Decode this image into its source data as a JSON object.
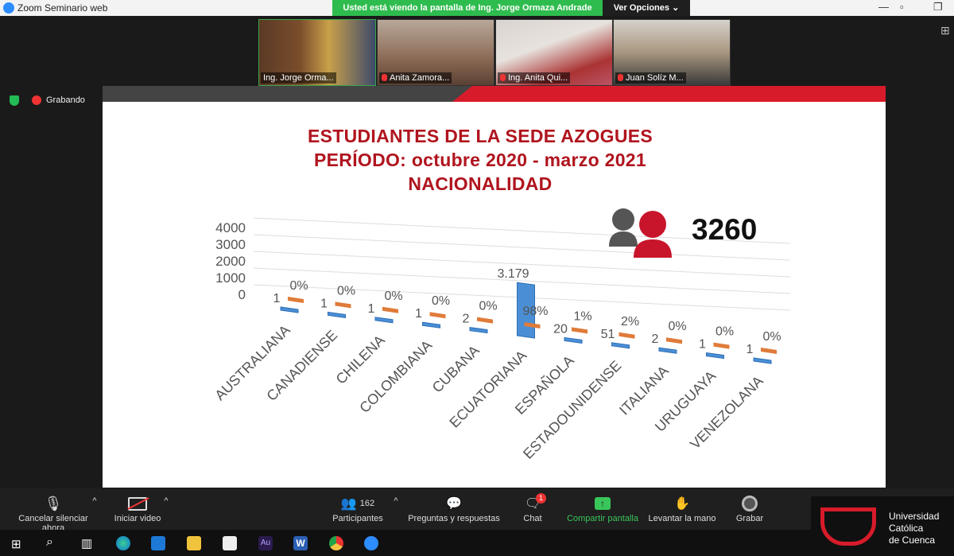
{
  "window": {
    "title": "Zoom Seminario web"
  },
  "share_banner": {
    "text": "Usted está viendo la pantalla de Ing. Jorge Ormaza Andrade",
    "view_options": "Ver Opciones"
  },
  "participants_thumbs": [
    {
      "name": "Ing. Jorge Orma...",
      "muted": false
    },
    {
      "name": "Anita Zamora...",
      "muted": true
    },
    {
      "name": "Ing. Anita Qui...",
      "muted": true
    },
    {
      "name": "Juan Solíz M...",
      "muted": true
    }
  ],
  "recording": {
    "label": "Grabando"
  },
  "slide": {
    "title_lines": [
      "ESTUDIANTES DE LA SEDE AZOGUES",
      "PERÍODO: octubre 2020 - marzo 2021",
      "NACIONALIDAD"
    ],
    "total": "3260",
    "chart_data": {
      "type": "bar",
      "categories": [
        "AUSTRALIANA",
        "CANADIENSE",
        "CHILENA",
        "COLOMBIANA",
        "CUBANA",
        "ECUATORIANA",
        "ESPAÑOLA",
        "ESTADOUNIDENSE",
        "ITALIANA",
        "URUGUAYA",
        "VENEZOLANA"
      ],
      "series": [
        {
          "values": [
            1,
            1,
            1,
            1,
            2,
            3179,
            20,
            51,
            2,
            1,
            1
          ],
          "labels": [
            "1",
            "1",
            "1",
            "1",
            "2",
            "3.179",
            "20",
            "51",
            "2",
            "1",
            "1"
          ]
        },
        {
          "labels": [
            "0%",
            "0%",
            "0%",
            "0%",
            "0%",
            "98%",
            "1%",
            "2%",
            "0%",
            "0%",
            "0%"
          ]
        }
      ],
      "yticks": [
        "4000",
        "3000",
        "2000",
        "1000",
        "0"
      ],
      "ylim": [
        0,
        4000
      ],
      "colors": {
        "count": "#4a8fd6",
        "percent": "#e07b39"
      }
    }
  },
  "toolbar": {
    "mute": "Cancelar silenciar ahora",
    "video": "Iniciar video",
    "participants": "Participantes",
    "participants_count": "162",
    "qa": "Preguntas y respuestas",
    "chat": "Chat",
    "chat_badge": "1",
    "share": "Compartir pantalla",
    "raise": "Levantar la mano",
    "record": "Grabar"
  },
  "logo": {
    "line1": "Universidad",
    "line2": "Católica",
    "line3": "de Cuenca"
  }
}
